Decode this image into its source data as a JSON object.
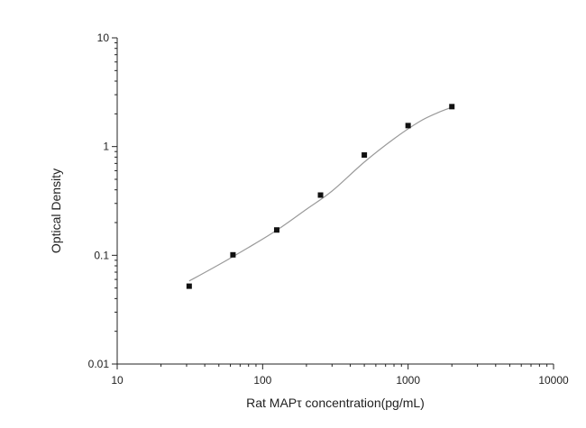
{
  "chart_data": {
    "type": "scatter",
    "xlabel": "Rat MAPτ  concentration(pg/mL)",
    "ylabel": "Optical Density",
    "x_scale": "log",
    "y_scale": "log",
    "xlim": [
      10,
      10000
    ],
    "ylim": [
      0.01,
      10
    ],
    "x_ticks": [
      10,
      100,
      1000,
      10000
    ],
    "x_tick_labels": [
      "10",
      "100",
      "1000",
      "10000"
    ],
    "y_ticks": [
      0.01,
      0.1,
      1,
      10
    ],
    "y_tick_labels": [
      "0.01",
      "0.1",
      "1",
      "10"
    ],
    "grid": false,
    "points": {
      "x": [
        31.25,
        62.5,
        125,
        250,
        500,
        1000,
        2000
      ],
      "y": [
        0.052,
        0.101,
        0.171,
        0.358,
        0.836,
        1.56,
        2.33
      ]
    },
    "fit_curve": {
      "x": [
        31.25,
        50,
        80,
        125,
        200,
        300,
        500,
        800,
        1200,
        1600,
        2000
      ],
      "y": [
        0.058,
        0.082,
        0.118,
        0.17,
        0.265,
        0.39,
        0.72,
        1.18,
        1.7,
        2.05,
        2.3
      ]
    },
    "colors": {
      "axis": "#222222",
      "marker": "#111111",
      "curve": "#9a9a9a"
    }
  }
}
